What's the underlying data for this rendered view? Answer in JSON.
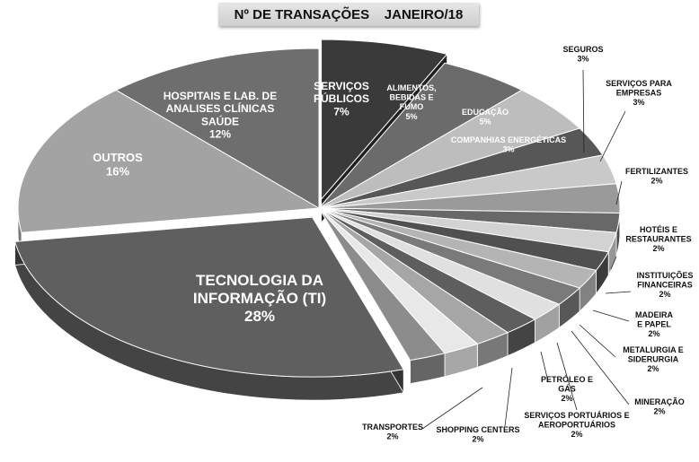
{
  "chart_data": {
    "type": "pie",
    "title": "Nº DE TRANSAÇÕES    JANEIRO/18",
    "slices": [
      {
        "label": "SERVIÇOS PÚBLICOS",
        "value": 7,
        "display": "7%",
        "color": "#3a3a3a"
      },
      {
        "label": "ALIMENTOS, BEBIDAS E FUMO",
        "value": 5,
        "display": "5%",
        "color": "#6b6b6b"
      },
      {
        "label": "EDUCAÇÃO",
        "value": 5,
        "display": "5%",
        "color": "#bdbdbd"
      },
      {
        "label": "COMPANHIAS ENERGÉTICAS",
        "value": 3,
        "display": "3%",
        "color": "#575757"
      },
      {
        "label": "SEGUROS",
        "value": 3,
        "display": "3%",
        "color": "#c9c9c9"
      },
      {
        "label": "SERVIÇOS PARA EMPRESAS",
        "value": 3,
        "display": "3%",
        "color": "#9a9a9a"
      },
      {
        "label": "FERTILIZANTES",
        "value": 2,
        "display": "2%",
        "color": "#686868"
      },
      {
        "label": "HOTÉIS E RESTAURANTES",
        "value": 2,
        "display": "2%",
        "color": "#d2d2d2"
      },
      {
        "label": "INSTITUIÇÕES FINANCEIRAS",
        "value": 2,
        "display": "2%",
        "color": "#505050"
      },
      {
        "label": "MADEIRA E PAPEL",
        "value": 2,
        "display": "2%",
        "color": "#b4b4b4"
      },
      {
        "label": "METALURGIA E SIDERURGIA",
        "value": 2,
        "display": "2%",
        "color": "#7a7a7a"
      },
      {
        "label": "MINERAÇÃO",
        "value": 2,
        "display": "2%",
        "color": "#e0e0e0"
      },
      {
        "label": "SERVIÇOS PORTUÁRIOS E AEROPORTUÁRIOS",
        "value": 2,
        "display": "2%",
        "color": "#5e5e5e"
      },
      {
        "label": "PETRÓLEO E GÁS",
        "value": 2,
        "display": "2%",
        "color": "#a6a6a6"
      },
      {
        "label": "SHOPPING CENTERS",
        "value": 2,
        "display": "2%",
        "color": "#e8e8e8"
      },
      {
        "label": "TRANSPORTES",
        "value": 2,
        "display": "2%",
        "color": "#8c8c8c"
      },
      {
        "label": "TECNOLOGIA DA INFORMAÇÃO (TI)",
        "value": 28,
        "display": "28%",
        "color": "#5f5f5f"
      },
      {
        "label": "OUTROS",
        "value": 16,
        "display": "16%",
        "color": "#a3a3a3"
      },
      {
        "label": "HOSPITAIS E LAB. DE ANALISES CLÍNICAS SAÚDE",
        "value": 12,
        "display": "12%",
        "color": "#6e6e6e"
      }
    ],
    "exploded": [
      "SERVIÇOS PÚBLICOS",
      "TECNOLOGIA DA INFORMAÇÃO (TI)"
    ],
    "style": "3d-pie",
    "legend": "none"
  }
}
